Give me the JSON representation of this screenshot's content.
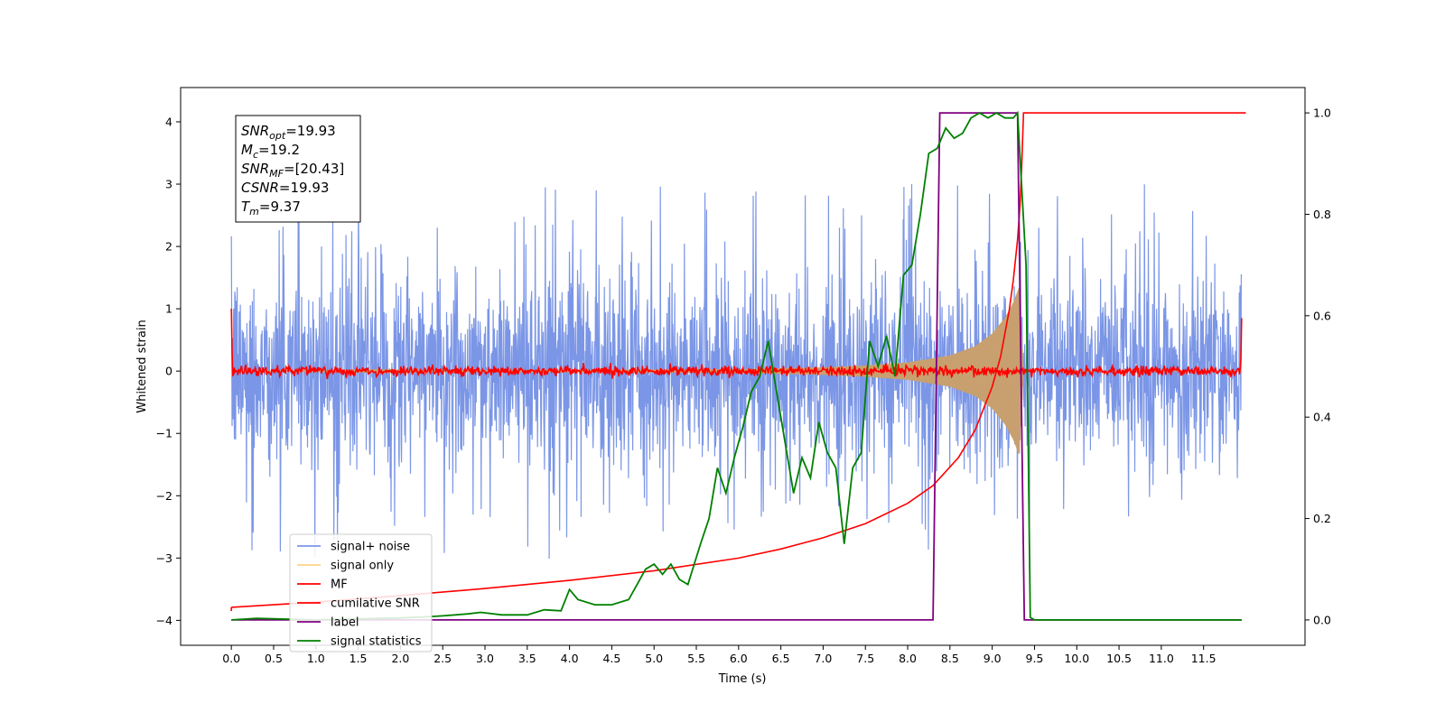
{
  "chart_data": {
    "type": "line",
    "xlabel": "Time (s)",
    "ylabel_left": "Whitened strain",
    "ylabel_right": "",
    "xlim": [
      -0.6,
      12.7
    ],
    "ylim_left": [
      -4.4,
      4.55
    ],
    "ylim_right": [
      -0.05,
      1.05
    ],
    "x_ticks": [
      "0.0",
      "0.5",
      "1.0",
      "1.5",
      "2.0",
      "2.5",
      "3.0",
      "3.5",
      "4.0",
      "4.5",
      "5.0",
      "5.5",
      "6.0",
      "6.5",
      "7.0",
      "7.5",
      "8.0",
      "8.5",
      "9.0",
      "9.5",
      "10.0",
      "10.5",
      "11.0",
      "11.5"
    ],
    "y_ticks_left": [
      "−4",
      "−3",
      "−2",
      "−1",
      "0",
      "1",
      "2",
      "3",
      "4"
    ],
    "y_ticks_right": [
      "0.0",
      "0.2",
      "0.4",
      "0.6",
      "0.8",
      "1.0"
    ],
    "grid": false,
    "legend_position": "lower-left",
    "annotation": [
      {
        "main": "SNR",
        "sub": "opt",
        "rest": "=19.93"
      },
      {
        "main": "M",
        "sub": "c",
        "rest": "=19.2"
      },
      {
        "main": "SNR",
        "sub": "MF",
        "rest": "=[20.43]"
      },
      {
        "main": "CSNR",
        "sub": "",
        "rest": "=19.93"
      },
      {
        "main": "T",
        "sub": "m",
        "rest": "=9.37"
      }
    ],
    "series": [
      {
        "name": "signal+ noise",
        "axis": "left",
        "color": "#7b96e6",
        "note": "whitened noise, roughly uniform amplitude ±2 with spikes to ±3"
      },
      {
        "name": "signal only",
        "axis": "left",
        "color": "#fcd38a",
        "envelope": {
          "x": [
            0,
            6.0,
            7.0,
            7.5,
            8.0,
            8.5,
            8.8,
            9.0,
            9.15,
            9.25,
            9.32,
            9.37
          ],
          "amp": [
            0.0,
            0.03,
            0.06,
            0.09,
            0.14,
            0.25,
            0.4,
            0.6,
            0.85,
            1.1,
            1.35,
            0.0
          ]
        }
      },
      {
        "name": "MF",
        "axis": "left",
        "color": "#ff0000",
        "note": "near zero with small fluctuations, peaks near ±1 at edges"
      },
      {
        "name": "cumilative SNR",
        "axis": "right",
        "color": "#ff0000",
        "x": [
          0.0,
          1.0,
          2.0,
          3.0,
          4.0,
          5.0,
          6.0,
          6.5,
          7.0,
          7.5,
          8.0,
          8.3,
          8.6,
          8.8,
          9.0,
          9.1,
          9.2,
          9.25,
          9.3,
          9.33,
          9.35,
          9.37,
          12.0
        ],
        "y": [
          0.025,
          0.035,
          0.048,
          0.062,
          0.078,
          0.097,
          0.122,
          0.14,
          0.162,
          0.19,
          0.23,
          0.265,
          0.32,
          0.375,
          0.46,
          0.52,
          0.61,
          0.67,
          0.75,
          0.82,
          0.9,
          1.0,
          1.0
        ]
      },
      {
        "name": "label",
        "axis": "right",
        "color": "#800080",
        "x": [
          0.0,
          8.3,
          8.38,
          9.3,
          9.38,
          11.95
        ],
        "y": [
          0.0,
          0.0,
          1.0,
          1.0,
          0.0,
          0.0
        ]
      },
      {
        "name": "signal statistics",
        "axis": "right",
        "color": "#008000",
        "x": [
          0.0,
          0.3,
          1.0,
          1.5,
          2.0,
          2.3,
          2.5,
          2.8,
          2.95,
          3.2,
          3.5,
          3.7,
          3.9,
          4.0,
          4.1,
          4.3,
          4.5,
          4.7,
          4.8,
          4.9,
          5.0,
          5.1,
          5.2,
          5.3,
          5.4,
          5.55,
          5.65,
          5.75,
          5.85,
          5.95,
          6.05,
          6.15,
          6.25,
          6.35,
          6.45,
          6.55,
          6.65,
          6.75,
          6.85,
          6.95,
          7.05,
          7.15,
          7.25,
          7.35,
          7.45,
          7.55,
          7.65,
          7.75,
          7.85,
          7.95,
          8.05,
          8.15,
          8.25,
          8.35,
          8.45,
          8.55,
          8.65,
          8.75,
          8.85,
          8.95,
          9.05,
          9.15,
          9.25,
          9.3,
          9.4,
          9.45,
          9.5,
          11.95
        ],
        "y": [
          0.0,
          0.003,
          0.0,
          0.002,
          0.004,
          0.006,
          0.008,
          0.012,
          0.015,
          0.01,
          0.01,
          0.02,
          0.018,
          0.06,
          0.04,
          0.03,
          0.03,
          0.04,
          0.07,
          0.1,
          0.11,
          0.09,
          0.11,
          0.08,
          0.07,
          0.15,
          0.2,
          0.3,
          0.25,
          0.32,
          0.38,
          0.45,
          0.48,
          0.55,
          0.45,
          0.35,
          0.25,
          0.32,
          0.28,
          0.39,
          0.33,
          0.3,
          0.15,
          0.3,
          0.33,
          0.55,
          0.5,
          0.56,
          0.48,
          0.68,
          0.7,
          0.8,
          0.92,
          0.93,
          0.97,
          0.95,
          0.96,
          0.99,
          1.0,
          0.99,
          1.0,
          0.99,
          0.99,
          1.0,
          0.7,
          0.005,
          0.0,
          0.0
        ]
      }
    ]
  }
}
